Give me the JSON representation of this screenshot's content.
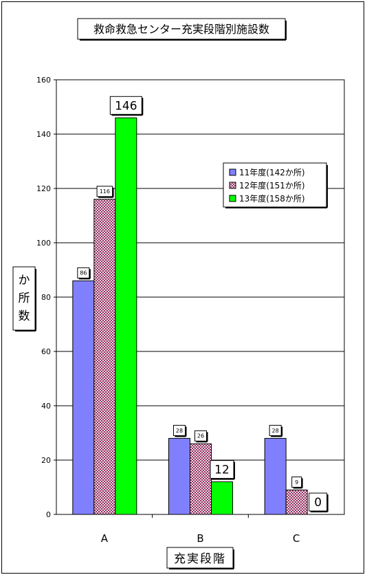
{
  "chart_data": {
    "type": "bar",
    "title": "救命救急センター充実段階別施設数",
    "xlabel": "充実段階",
    "ylabel": "か所数",
    "categories": [
      "A",
      "B",
      "C"
    ],
    "ylim": [
      0,
      160
    ],
    "yticks": [
      0,
      20,
      40,
      60,
      80,
      100,
      120,
      140,
      160
    ],
    "grid": true,
    "legend_position": "top-right",
    "series": [
      {
        "name": "11年度(142か所)",
        "values": [
          86,
          28,
          28
        ],
        "labels": [
          "86",
          "28",
          "28"
        ],
        "color": "#8080ff",
        "pattern": "solid"
      },
      {
        "name": "12年度(151か所)",
        "values": [
          116,
          26,
          9
        ],
        "labels": [
          "116",
          "26",
          "9"
        ],
        "color": "#993366",
        "pattern": "grid"
      },
      {
        "name": "13年度(158か所)",
        "values": [
          146,
          12,
          0
        ],
        "labels": [
          "146",
          "12",
          "0"
        ],
        "color": "#00ff00",
        "pattern": "solid"
      }
    ]
  }
}
